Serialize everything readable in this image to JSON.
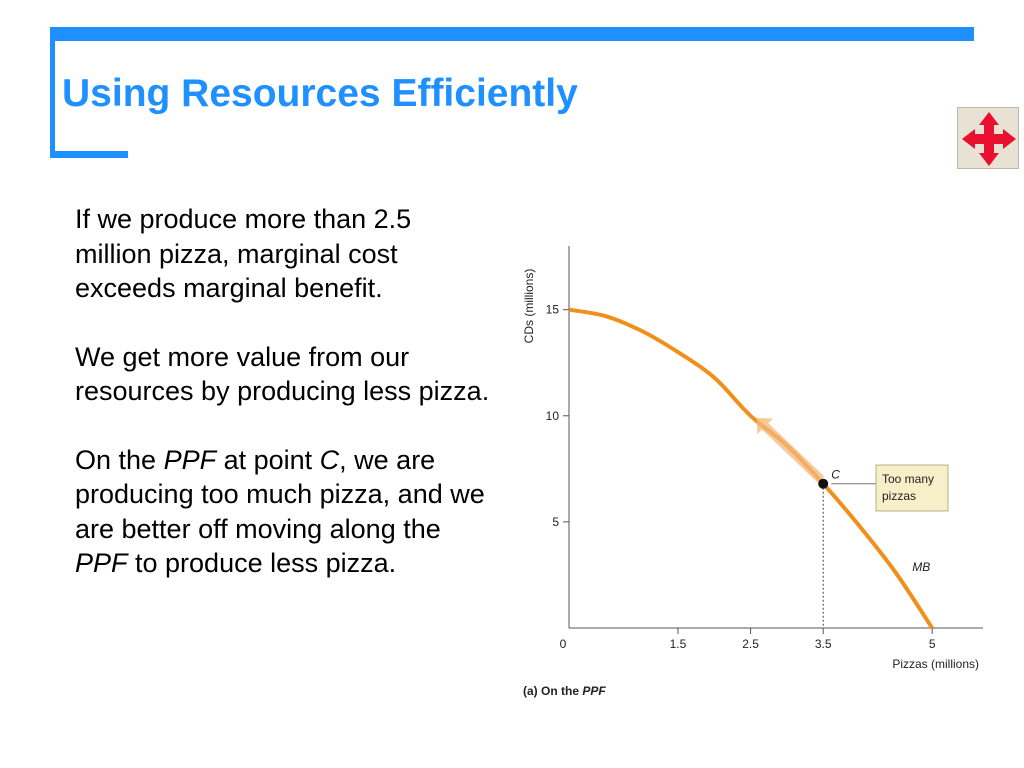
{
  "slide": {
    "title": "Using Resources Efficiently",
    "accent_color": "#1e90ff",
    "nav_button": {
      "icon": "four-way-arrow-icon",
      "color": "#e8102e"
    }
  },
  "text": {
    "p1": "If we produce more than 2.5 million pizza, marginal cost exceeds marginal benefit.",
    "p2": "We get more value from our resources by producing less pizza.",
    "p3": {
      "part1": "On the ",
      "ppf1": "PPF",
      "part2": " at point ",
      "point": "C",
      "part3": ", we are producing too much pizza, and we are better off moving along the ",
      "ppf2": "PPF",
      "part4": " to produce less pizza."
    }
  },
  "figure": {
    "caption_prefix": "(a) On the ",
    "caption_ppf": "PPF",
    "callout_line1": "Too many",
    "callout_line2": "pizzas",
    "callout_color": "#f7efc8"
  },
  "chart_data": {
    "type": "line",
    "xlabel": "Pizzas (millions)",
    "ylabel": "CDs (millions)",
    "xlim": [
      0,
      5.7
    ],
    "ylim": [
      0,
      18
    ],
    "x_ticks": [
      "0",
      "1.5",
      "2.5",
      "3.5",
      "5"
    ],
    "y_ticks": [
      "5",
      "10",
      "15"
    ],
    "series": [
      {
        "name": "MB",
        "color": "#f0901a",
        "x": [
          0,
          0.5,
          1,
          1.5,
          2,
          2.5,
          3,
          3.5,
          4,
          4.5,
          5
        ],
        "y": [
          15,
          14.7,
          14,
          13,
          11.8,
          10,
          8.6,
          6.8,
          4.8,
          2.6,
          0
        ]
      }
    ],
    "point": {
      "label": "C",
      "x": 3.5,
      "y": 6.8
    },
    "arrow": {
      "from": [
        3.5,
        6.8
      ],
      "to": [
        2.7,
        9.5
      ]
    },
    "grid": false
  }
}
